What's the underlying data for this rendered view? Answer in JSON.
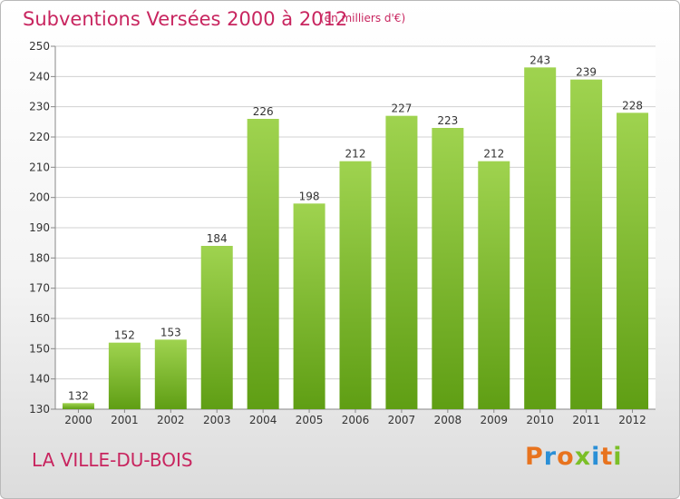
{
  "header": {
    "title": "Subventions Versées 2000 à 2012",
    "unit": "(en milliers d'€)"
  },
  "footer": {
    "town": "LA VILLE-DU-BOIS",
    "logo": "Proxiti",
    "logo_colors": [
      "#e8731e",
      "#2a8fd6",
      "#e8731e",
      "#7bbf27",
      "#2a8fd6",
      "#e8731e",
      "#7bbf27"
    ]
  },
  "colors": {
    "title": "#c8255f",
    "bar_top": "#9fd34f",
    "bar_bottom": "#5f9e14",
    "grid": "#d0d0d0",
    "axis": "#888888"
  },
  "chart_data": {
    "type": "bar",
    "categories": [
      "2000",
      "2001",
      "2002",
      "2003",
      "2004",
      "2005",
      "2006",
      "2007",
      "2008",
      "2009",
      "2010",
      "2011",
      "2012"
    ],
    "values": [
      132,
      152,
      153,
      184,
      226,
      198,
      212,
      227,
      223,
      212,
      243,
      239,
      228
    ],
    "title": "Subventions Versées 2000 à 2012",
    "subtitle": "(en milliers d'€)",
    "ylim": [
      130,
      250
    ],
    "yticks": [
      130,
      140,
      150,
      160,
      170,
      180,
      190,
      200,
      210,
      220,
      230,
      240,
      250
    ],
    "grid": true,
    "data_labels": true
  }
}
